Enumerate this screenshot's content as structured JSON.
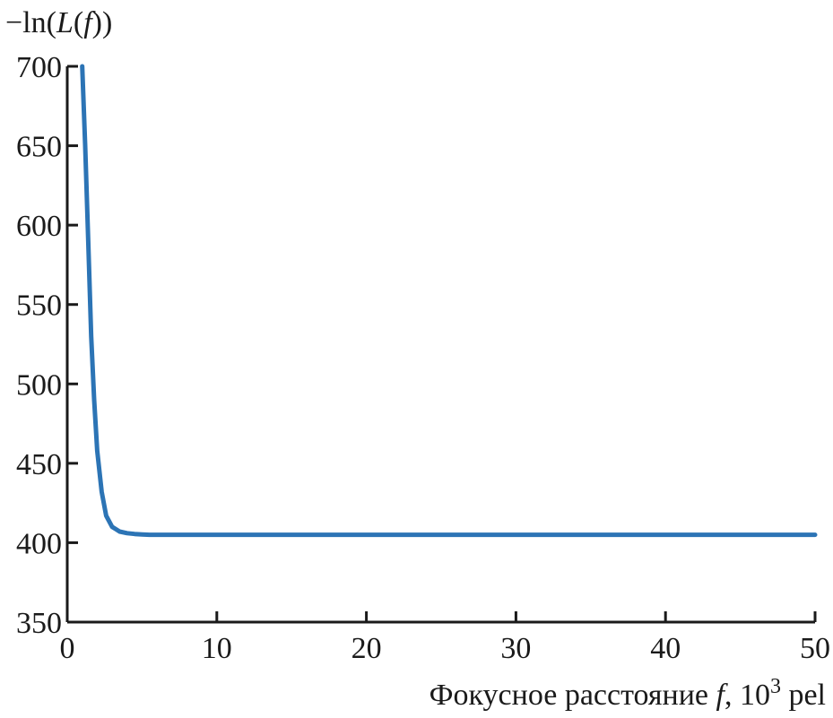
{
  "chart_data": {
    "type": "line",
    "title": "",
    "ylabel": {
      "prefix": "−ln(",
      "var": "L",
      "open": "(",
      "arg": "f",
      "close": "))"
    },
    "xlabel": {
      "text": "Фокусное расстояние ",
      "var": "f",
      "comma": ", 10",
      "exp": "3",
      "unit": " pel"
    },
    "xlim": [
      0,
      50
    ],
    "ylim": [
      350,
      700
    ],
    "xticks": [
      0,
      10,
      20,
      30,
      40,
      50
    ],
    "yticks": [
      350,
      400,
      450,
      500,
      550,
      600,
      650,
      700
    ],
    "grid": false,
    "legend": "none",
    "series": [
      {
        "color": "#2c74b5",
        "x": [
          1.0,
          1.2,
          1.4,
          1.6,
          1.8,
          2.0,
          2.3,
          2.6,
          3.0,
          3.5,
          4.0,
          4.5,
          5.0,
          5.5,
          6.0,
          8.0,
          10,
          15,
          20,
          25,
          30,
          35,
          40,
          45,
          50
        ],
        "y": [
          700,
          650,
          590,
          530,
          490,
          458,
          432,
          417,
          410,
          407,
          406,
          405.5,
          405.2,
          405,
          405,
          405,
          405,
          405,
          405,
          405,
          405,
          405,
          405,
          405,
          405
        ]
      }
    ]
  }
}
